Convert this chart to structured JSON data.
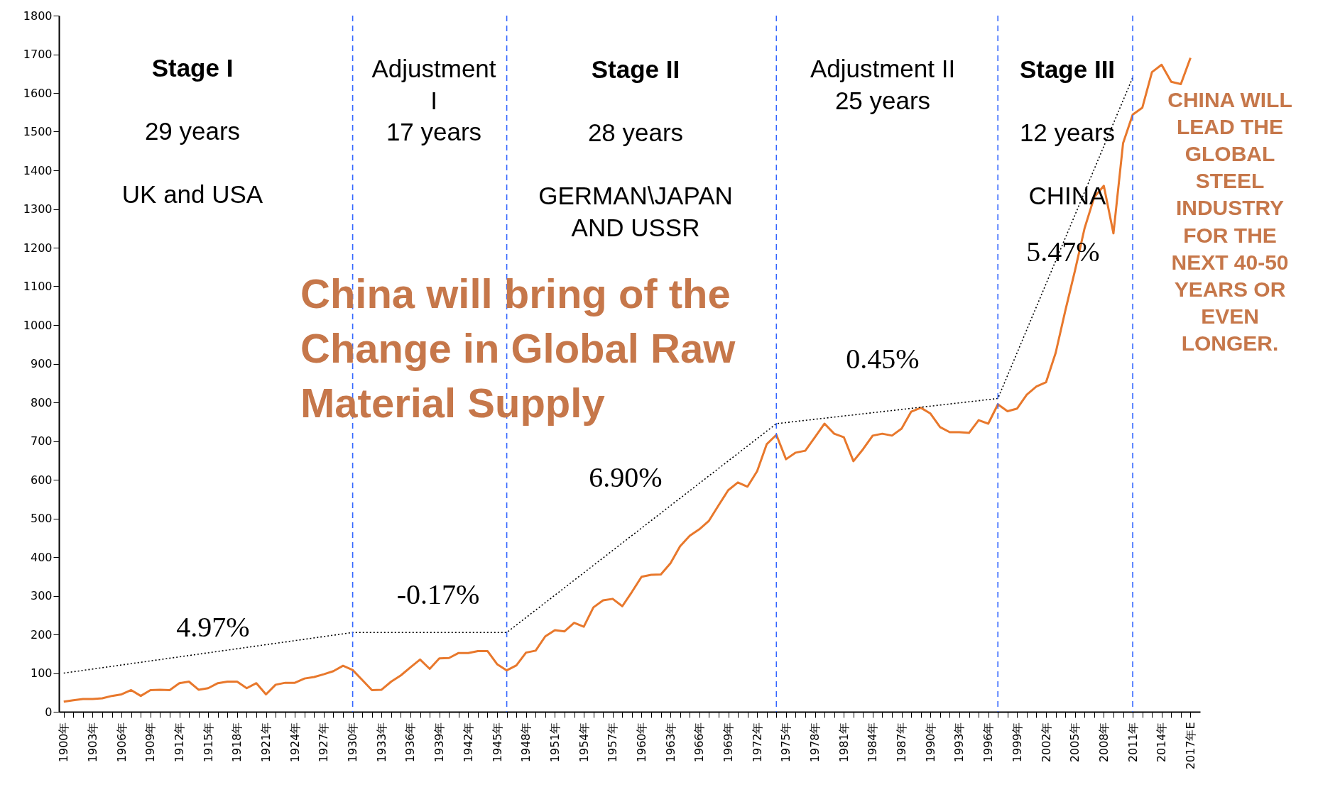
{
  "chart_data": {
    "type": "line",
    "x": [
      1900,
      1901,
      1902,
      1903,
      1904,
      1905,
      1906,
      1907,
      1908,
      1909,
      1910,
      1911,
      1912,
      1913,
      1914,
      1915,
      1916,
      1917,
      1918,
      1919,
      1920,
      1921,
      1922,
      1923,
      1924,
      1925,
      1926,
      1927,
      1928,
      1929,
      1930,
      1931,
      1932,
      1933,
      1934,
      1935,
      1936,
      1937,
      1938,
      1939,
      1940,
      1941,
      1942,
      1943,
      1944,
      1945,
      1946,
      1947,
      1948,
      1949,
      1950,
      1951,
      1952,
      1953,
      1954,
      1955,
      1956,
      1957,
      1958,
      1959,
      1960,
      1961,
      1962,
      1963,
      1964,
      1965,
      1966,
      1967,
      1968,
      1969,
      1970,
      1971,
      1972,
      1973,
      1974,
      1975,
      1976,
      1977,
      1978,
      1979,
      1980,
      1981,
      1982,
      1983,
      1984,
      1985,
      1986,
      1987,
      1988,
      1989,
      1990,
      1991,
      1992,
      1993,
      1994,
      1995,
      1996,
      1997,
      1998,
      1999,
      2000,
      2001,
      2002,
      2003,
      2004,
      2005,
      2006,
      2007,
      2008,
      2009,
      2010,
      2011,
      2012,
      2013,
      2014,
      2015,
      2016,
      2017
    ],
    "series": [
      {
        "color": "#e8782c",
        "values": [
          26,
          30,
          33,
          33,
          35,
          41,
          45,
          56,
          41,
          56,
          57,
          56,
          74,
          78,
          57,
          61,
          74,
          78,
          78,
          61,
          74,
          45,
          70,
          75,
          75,
          86,
          90,
          97,
          105,
          119,
          108,
          82,
          56,
          57,
          78,
          94,
          115,
          135,
          111,
          138,
          139,
          152,
          152,
          157,
          157,
          123,
          107,
          120,
          153,
          158,
          195,
          211,
          208,
          230,
          220,
          270,
          288,
          292,
          273,
          310,
          349,
          354,
          355,
          384,
          428,
          455,
          472,
          494,
          534,
          573,
          593,
          582,
          622,
          692,
          716,
          653,
          670,
          675,
          710,
          745,
          719,
          710,
          648,
          679,
          714,
          719,
          714,
          732,
          776,
          786,
          771,
          736,
          723,
          723,
          721,
          754,
          745,
          795,
          777,
          784,
          820,
          841,
          852,
          928,
          1037,
          1140,
          1250,
          1330,
          1360,
          1237,
          1470,
          1544,
          1562,
          1654,
          1673,
          1629,
          1623,
          1691
        ]
      },
      {
        "type": "line",
        "color": "#000000",
        "line_style": "dotted",
        "x": [
          1900,
          1930,
          1946,
          1974,
          1997,
          2011
        ],
        "values": [
          100,
          205,
          205,
          745,
          810,
          1640
        ]
      }
    ],
    "xlim": [
      1899.5,
      2018
    ],
    "xticks": [
      {
        "value": 1900,
        "label": "1900年"
      },
      {
        "value": 1901,
        "label": null
      },
      {
        "value": 1902,
        "label": null
      },
      {
        "value": 1903,
        "label": "1903年"
      },
      {
        "value": 1904,
        "label": null
      },
      {
        "value": 1905,
        "label": null
      },
      {
        "value": 1906,
        "label": "1906年"
      },
      {
        "value": 1907,
        "label": null
      },
      {
        "value": 1908,
        "label": null
      },
      {
        "value": 1909,
        "label": "1909年"
      },
      {
        "value": 1910,
        "label": null
      },
      {
        "value": 1911,
        "label": null
      },
      {
        "value": 1912,
        "label": "1912年"
      },
      {
        "value": 1913,
        "label": null
      },
      {
        "value": 1914,
        "label": null
      },
      {
        "value": 1915,
        "label": "1915年"
      },
      {
        "value": 1916,
        "label": null
      },
      {
        "value": 1917,
        "label": null
      },
      {
        "value": 1918,
        "label": "1918年"
      },
      {
        "value": 1919,
        "label": null
      },
      {
        "value": 1920,
        "label": null
      },
      {
        "value": 1921,
        "label": "1921年"
      },
      {
        "value": 1922,
        "label": null
      },
      {
        "value": 1923,
        "label": null
      },
      {
        "value": 1924,
        "label": "1924年"
      },
      {
        "value": 1925,
        "label": null
      },
      {
        "value": 1926,
        "label": null
      },
      {
        "value": 1927,
        "label": "1927年"
      },
      {
        "value": 1928,
        "label": null
      },
      {
        "value": 1929,
        "label": null
      },
      {
        "value": 1930,
        "label": "1930年"
      },
      {
        "value": 1931,
        "label": null
      },
      {
        "value": 1932,
        "label": null
      },
      {
        "value": 1933,
        "label": "1933年"
      },
      {
        "value": 1934,
        "label": null
      },
      {
        "value": 1935,
        "label": null
      },
      {
        "value": 1936,
        "label": "1936年"
      },
      {
        "value": 1937,
        "label": null
      },
      {
        "value": 1938,
        "label": null
      },
      {
        "value": 1939,
        "label": "1939年"
      },
      {
        "value": 1940,
        "label": null
      },
      {
        "value": 1941,
        "label": null
      },
      {
        "value": 1942,
        "label": "1942年"
      },
      {
        "value": 1943,
        "label": null
      },
      {
        "value": 1944,
        "label": null
      },
      {
        "value": 1945,
        "label": "1945年"
      },
      {
        "value": 1946,
        "label": null
      },
      {
        "value": 1947,
        "label": null
      },
      {
        "value": 1948,
        "label": "1948年"
      },
      {
        "value": 1949,
        "label": null
      },
      {
        "value": 1950,
        "label": null
      },
      {
        "value": 1951,
        "label": "1951年"
      },
      {
        "value": 1952,
        "label": null
      },
      {
        "value": 1953,
        "label": null
      },
      {
        "value": 1954,
        "label": "1954年"
      },
      {
        "value": 1955,
        "label": null
      },
      {
        "value": 1956,
        "label": null
      },
      {
        "value": 1957,
        "label": "1957年"
      },
      {
        "value": 1958,
        "label": null
      },
      {
        "value": 1959,
        "label": null
      },
      {
        "value": 1960,
        "label": "1960年"
      },
      {
        "value": 1961,
        "label": null
      },
      {
        "value": 1962,
        "label": null
      },
      {
        "value": 1963,
        "label": "1963年"
      },
      {
        "value": 1964,
        "label": null
      },
      {
        "value": 1965,
        "label": null
      },
      {
        "value": 1966,
        "label": "1966年"
      },
      {
        "value": 1967,
        "label": null
      },
      {
        "value": 1968,
        "label": null
      },
      {
        "value": 1969,
        "label": "1969年"
      },
      {
        "value": 1970,
        "label": null
      },
      {
        "value": 1971,
        "label": null
      },
      {
        "value": 1972,
        "label": "1972年"
      },
      {
        "value": 1973,
        "label": null
      },
      {
        "value": 1974,
        "label": null
      },
      {
        "value": 1975,
        "label": "1975年"
      },
      {
        "value": 1976,
        "label": null
      },
      {
        "value": 1977,
        "label": null
      },
      {
        "value": 1978,
        "label": "1978年"
      },
      {
        "value": 1979,
        "label": null
      },
      {
        "value": 1980,
        "label": null
      },
      {
        "value": 1981,
        "label": "1981年"
      },
      {
        "value": 1982,
        "label": null
      },
      {
        "value": 1983,
        "label": null
      },
      {
        "value": 1984,
        "label": "1984年"
      },
      {
        "value": 1985,
        "label": null
      },
      {
        "value": 1986,
        "label": null
      },
      {
        "value": 1987,
        "label": "1987年"
      },
      {
        "value": 1988,
        "label": null
      },
      {
        "value": 1989,
        "label": null
      },
      {
        "value": 1990,
        "label": "1990年"
      },
      {
        "value": 1991,
        "label": null
      },
      {
        "value": 1992,
        "label": null
      },
      {
        "value": 1993,
        "label": "1993年"
      },
      {
        "value": 1994,
        "label": null
      },
      {
        "value": 1995,
        "label": null
      },
      {
        "value": 1996,
        "label": "1996年"
      },
      {
        "value": 1997,
        "label": null
      },
      {
        "value": 1998,
        "label": null
      },
      {
        "value": 1999,
        "label": "1999年"
      },
      {
        "value": 2000,
        "label": null
      },
      {
        "value": 2001,
        "label": null
      },
      {
        "value": 2002,
        "label": "2002年"
      },
      {
        "value": 2003,
        "label": null
      },
      {
        "value": 2004,
        "label": null
      },
      {
        "value": 2005,
        "label": "2005年"
      },
      {
        "value": 2006,
        "label": null
      },
      {
        "value": 2007,
        "label": null
      },
      {
        "value": 2008,
        "label": "2008年"
      },
      {
        "value": 2009,
        "label": null
      },
      {
        "value": 2010,
        "label": null
      },
      {
        "value": 2011,
        "label": "2011年"
      },
      {
        "value": 2012,
        "label": null
      },
      {
        "value": 2013,
        "label": null
      },
      {
        "value": 2014,
        "label": "2014年"
      },
      {
        "value": 2015,
        "label": null
      },
      {
        "value": 2016,
        "label": null
      },
      {
        "value": 2017,
        "label": "2017年E"
      }
    ],
    "ylim": [
      0,
      1800
    ],
    "yticks": [
      0,
      100,
      200,
      300,
      400,
      500,
      600,
      700,
      800,
      900,
      1000,
      1100,
      1200,
      1300,
      1400,
      1500,
      1600,
      1700,
      1800
    ],
    "grid": false,
    "ref_lines": [
      {
        "axis": "x",
        "value": 1930,
        "color": "#3366ff",
        "line_style": "dashed"
      },
      {
        "axis": "x",
        "value": 1946,
        "color": "#3366ff",
        "line_style": "dashed"
      },
      {
        "axis": "x",
        "value": 1974,
        "color": "#3366ff",
        "line_style": "dashed"
      },
      {
        "axis": "x",
        "value": 1997,
        "color": "#3366ff",
        "line_style": "dashed"
      },
      {
        "axis": "x",
        "value": 2011,
        "color": "#3366ff",
        "line_style": "dashed"
      }
    ],
    "annotations": [
      "Stage I",
      "29 years",
      "UK and USA",
      "Adjustment",
      "I",
      "17 years",
      "Stage II",
      "28 years",
      "GERMAN\\JAPAN",
      "AND USSR",
      "Adjustment II",
      "25 years",
      "Stage III",
      "12 years",
      "CHINA",
      "China will bring of the",
      "Change in Global Raw",
      "Material Supply",
      "CHINA WILL",
      "LEAD THE",
      "GLOBAL",
      "STEEL",
      "INDUSTRY",
      "FOR THE",
      "NEXT 40-50",
      "YEARS OR",
      "EVEN",
      "LONGER.",
      "4.97%",
      "-0.17%",
      "6.90%",
      "0.45%",
      "5.47%"
    ]
  }
}
